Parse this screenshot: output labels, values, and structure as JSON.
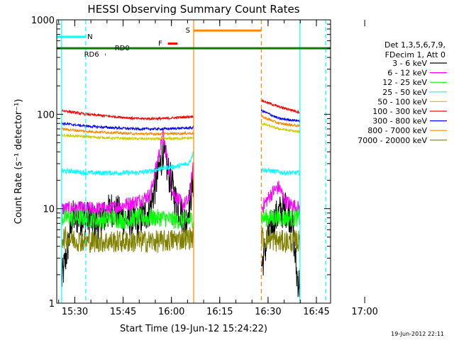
{
  "chart_data": {
    "type": "line",
    "title": "HESSI Observing Summary Count Rates",
    "xlabel": "Start Time (19-Jun-12 15:24:22)",
    "ylabel": "Count Rate (s⁻¹ detector⁻¹)",
    "yscale": "log",
    "ylim": [
      1,
      1000
    ],
    "xlim_minutes": [
      15.0,
      100.0
    ],
    "x_ticks": [
      "15:30",
      "15:45",
      "16:00",
      "16:15",
      "16:30",
      "16:45",
      "17:00"
    ],
    "y_ticks": [
      "1",
      "10",
      "100",
      "1000"
    ],
    "legend_header": [
      "Det 1,3,5,6,7,9,",
      "FDecim 1, Att 0"
    ],
    "legend_placement": "right",
    "date_stamp": "19-Jun-2012 22:11",
    "gaps": [
      [
        15.0,
        16.5
      ],
      [
        57.5,
        78.5
      ],
      [
        90.5,
        100.0
      ]
    ],
    "series": [
      {
        "name": "3 - 6 keV",
        "color": "#000000",
        "x": [
          16.5,
          20,
          24,
          28,
          32,
          36,
          40,
          44,
          48,
          52,
          55,
          57.5,
          78.5,
          81,
          84,
          86,
          88,
          89.5,
          90.5
        ],
        "y": [
          1.7,
          8,
          8,
          7,
          10,
          8,
          7,
          10,
          40,
          12,
          7,
          20,
          2.4,
          6,
          9,
          10,
          8,
          2,
          1.5
        ]
      },
      {
        "name": "6 - 12 keV",
        "color": "#ff00ff",
        "x": [
          16.5,
          20,
          24,
          28,
          32,
          36,
          40,
          44,
          48,
          51,
          54,
          56,
          57.5,
          78.5,
          80,
          82,
          84,
          86,
          88,
          90.5
        ],
        "y": [
          10,
          10,
          10,
          10,
          10,
          11,
          12,
          14,
          60,
          15,
          11,
          12,
          30,
          10,
          12,
          15,
          17,
          12,
          11,
          10
        ]
      },
      {
        "name": "12 - 25 keV",
        "color": "#00ff00",
        "x": [
          16.5,
          20,
          24,
          28,
          32,
          36,
          40,
          44,
          48,
          52,
          56,
          57.5,
          78.5,
          82,
          86,
          90.5
        ],
        "y": [
          8,
          8,
          8,
          7.5,
          8,
          7.5,
          8,
          8,
          8,
          7.5,
          7.5,
          8,
          8,
          8,
          8,
          8
        ]
      },
      {
        "name": "25 - 50 keV",
        "color": "#00ffff",
        "x": [
          16.5,
          20,
          24,
          28,
          32,
          36,
          40,
          44,
          48,
          52,
          56,
          57.5,
          78.5,
          82,
          86,
          90.5
        ],
        "y": [
          25,
          25,
          24,
          24,
          24,
          24,
          24,
          25,
          27,
          28,
          30,
          40,
          26,
          25,
          24,
          24
        ]
      },
      {
        "name": "50 - 100 keV",
        "color": "#cccc00",
        "x": [
          16.5,
          24,
          32,
          40,
          48,
          57.5,
          78.5,
          84,
          90.5
        ],
        "y": [
          60,
          58,
          56,
          55,
          55,
          56,
          80,
          70,
          65
        ]
      },
      {
        "name": "100 - 300 keV",
        "color": "#ff0000",
        "x": [
          16.5,
          24,
          32,
          40,
          48,
          57.5,
          78.5,
          84,
          90.5
        ],
        "y": [
          110,
          100,
          95,
          90,
          90,
          95,
          140,
          120,
          105
        ]
      },
      {
        "name": "300 - 800 keV",
        "color": "#0000ff",
        "x": [
          16.5,
          24,
          32,
          40,
          48,
          57.5,
          78.5,
          84,
          90.5
        ],
        "y": [
          80,
          75,
          72,
          70,
          70,
          72,
          110,
          90,
          85
        ]
      },
      {
        "name": "800 - 7000 keV",
        "color": "#ff8800",
        "x": [
          16.5,
          24,
          32,
          40,
          48,
          57.5,
          78.5,
          84,
          90.5
        ],
        "y": [
          70,
          66,
          64,
          62,
          62,
          63,
          95,
          80,
          75
        ]
      },
      {
        "name": "7000 - 20000 keV",
        "color": "#808000",
        "x": [
          16.5,
          24,
          32,
          40,
          48,
          57.5,
          78.5,
          84,
          90.5
        ],
        "y": [
          5,
          4.5,
          4.5,
          4.5,
          4.5,
          5,
          5,
          4.5,
          4.5
        ]
      }
    ],
    "flags": [
      {
        "label": "N",
        "color": "#00ffff",
        "x1": 15.0,
        "x2": 24.0,
        "y": 660,
        "label_x": 24.5
      },
      {
        "label": "S",
        "color": "#ff8800",
        "x1": 57.5,
        "x2": 78.5,
        "y": 770,
        "label_x": 55.0
      },
      {
        "label": "F",
        "color": "#ff0000",
        "x1": 49.5,
        "x2": 52.5,
        "y": 560,
        "label_x": 46.5
      },
      {
        "label": "RD6",
        "color": "#008000",
        "x1": 30.0,
        "x2": 30.2,
        "y": 430,
        "label_x": 23.5
      },
      {
        "label": "RD0",
        "color": "#008000",
        "x1": 15.0,
        "x2": 100.0,
        "y": 500,
        "label_x": 33.0
      }
    ],
    "vlines": [
      {
        "x": 16.5,
        "color": "#00ffff",
        "style": "solid"
      },
      {
        "x": 24.0,
        "color": "#00ffff",
        "style": "dashed"
      },
      {
        "x": 57.5,
        "color": "#ff8800",
        "style": "solid"
      },
      {
        "x": 78.5,
        "color": "#ff8800",
        "style": "dashed"
      },
      {
        "x": 90.5,
        "color": "#00ffff",
        "style": "solid"
      },
      {
        "x": 98.5,
        "color": "#00ffff",
        "style": "dashed"
      }
    ]
  }
}
